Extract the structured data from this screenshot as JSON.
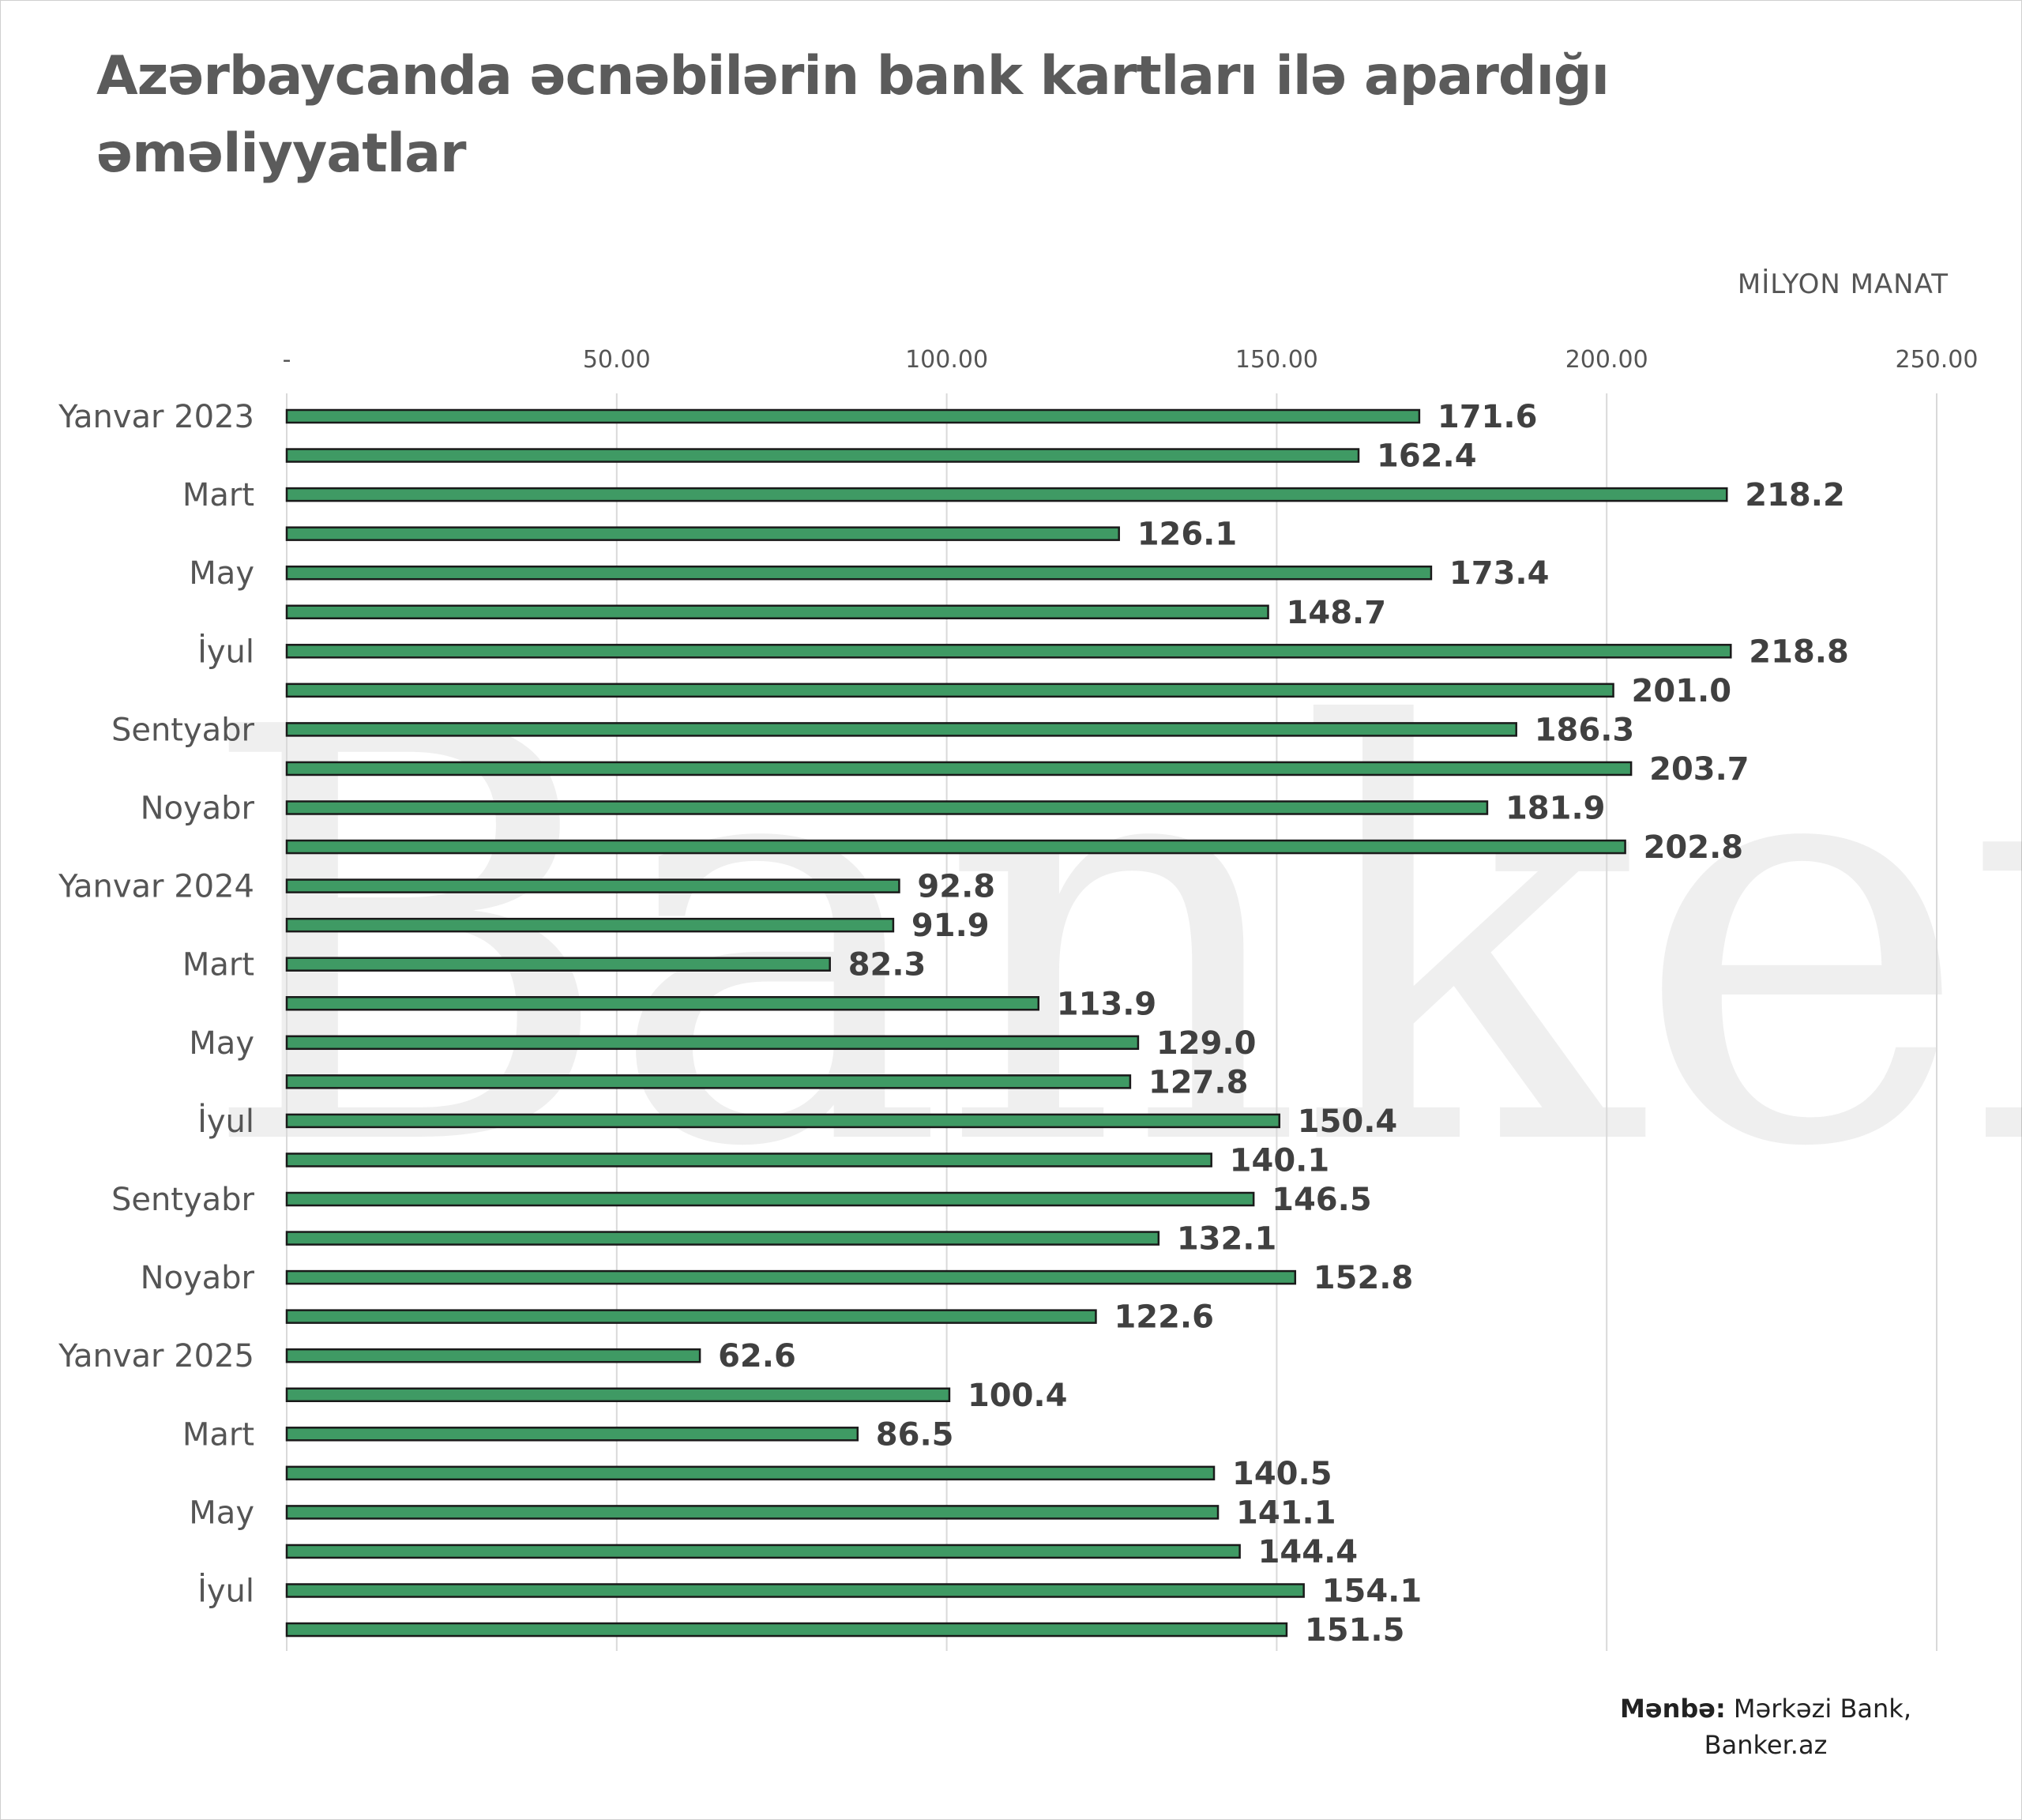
{
  "title": "Azərbaycanda əcnəbilərin bank kartları ilə apardığı əməliyyatlar",
  "unit_label": "MİLYON MANAT",
  "watermark": "Banker.az",
  "source": {
    "label": "Mənbə:",
    "line1": "Mərkəzi Bank,",
    "line2": "Banker.az"
  },
  "colors": {
    "bar_fill": "#3f9a64",
    "bar_stroke": "#1a1a1a",
    "gridline": "#d9d9d9",
    "value_label": "#404040",
    "category_label": "#555555"
  },
  "chart_data": {
    "type": "bar",
    "orientation": "horizontal",
    "title": "Azərbaycanda əcnəbilərin bank kartları ilə apardığı əməliyyatlar",
    "unit": "MİLYON MANAT",
    "xlim": [
      0,
      250
    ],
    "x_ticks": [
      {
        "value": 0,
        "label": "-"
      },
      {
        "value": 50,
        "label": "50.00"
      },
      {
        "value": 100,
        "label": "100.00"
      },
      {
        "value": 150,
        "label": "150.00"
      },
      {
        "value": 200,
        "label": "200.00"
      },
      {
        "value": 250,
        "label": "250.00"
      }
    ],
    "grid": true,
    "categories": [
      "Yanvar 2023",
      "",
      "Mart",
      "",
      "May",
      "",
      "İyul",
      "",
      "Sentyabr",
      "",
      "Noyabr",
      "",
      "Yanvar 2024",
      "",
      "Mart",
      "",
      "May",
      "",
      "İyul",
      "",
      "Sentyabr",
      "",
      "Noyabr",
      "",
      "Yanvar 2025",
      "",
      "Mart",
      "",
      "May",
      "",
      "İyul",
      ""
    ],
    "values": [
      171.6,
      162.4,
      218.2,
      126.1,
      173.4,
      148.7,
      218.8,
      201.0,
      186.3,
      203.7,
      181.9,
      202.8,
      92.8,
      91.9,
      82.3,
      113.9,
      129.0,
      127.8,
      150.4,
      140.1,
      146.5,
      132.1,
      152.8,
      122.6,
      62.6,
      100.4,
      86.5,
      140.5,
      141.1,
      144.4,
      154.1,
      151.5
    ],
    "value_labels": [
      "171.6",
      "162.4",
      "218.2",
      "126.1",
      "173.4",
      "148.7",
      "218.8",
      "201.0",
      "186.3",
      "203.7",
      "181.9",
      "202.8",
      "92.8",
      "91.9",
      "82.3",
      "113.9",
      "129.0",
      "127.8",
      "150.4",
      "140.1",
      "146.5",
      "132.1",
      "152.8",
      "122.6",
      "62.6",
      "100.4",
      "86.5",
      "140.5",
      "141.1",
      "144.4",
      "154.1",
      "151.5"
    ]
  }
}
